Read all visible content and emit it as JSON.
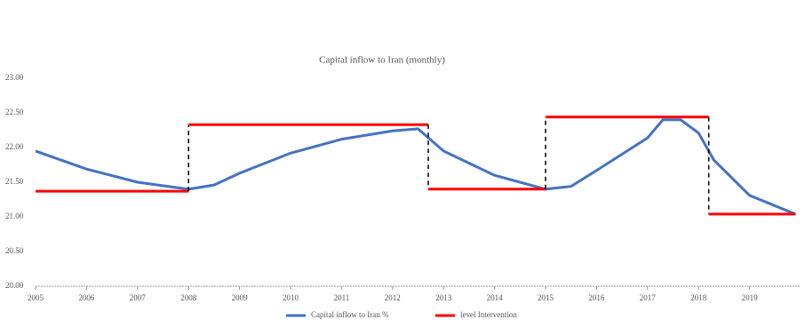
{
  "chart_data": {
    "type": "line",
    "title": "Capital inflow to Iran (monthly)",
    "xlim": [
      2005,
      2020
    ],
    "xticks": [
      2005,
      2006,
      2007,
      2008,
      2009,
      2010,
      2011,
      2012,
      2013,
      2014,
      2015,
      2016,
      2017,
      2018,
      2019
    ],
    "ylim": [
      20,
      23
    ],
    "yticks": [
      {
        "value": 20,
        "label": "20.00"
      },
      {
        "value": 20.5,
        "label": "20.50"
      },
      {
        "value": 21,
        "label": "21.00"
      },
      {
        "value": 21.5,
        "label": "21.50"
      },
      {
        "value": 22,
        "label": "22.00"
      },
      {
        "value": 22.5,
        "label": "22.50"
      },
      {
        "value": 23,
        "label": "23.00"
      }
    ],
    "series": [
      {
        "name": "Capital inflow to Iran %",
        "color": "#4472c4",
        "x": [
          2005,
          2006,
          2007,
          2008,
          2008.5,
          2009,
          2010,
          2011,
          2012,
          2012.5,
          2013,
          2014,
          2015,
          2015.5,
          2016,
          2017,
          2017.3,
          2017.65,
          2018,
          2018.3,
          2019,
          2019.9
        ],
        "values": [
          21.95,
          21.69,
          21.5,
          21.4,
          21.46,
          21.63,
          21.92,
          22.12,
          22.24,
          22.27,
          21.95,
          21.6,
          21.4,
          21.44,
          21.67,
          22.14,
          22.4,
          22.4,
          22.21,
          21.82,
          21.31,
          21.04
        ]
      },
      {
        "name": "level Intervention",
        "color": "#ff0000",
        "x": [
          2005,
          2008,
          2008,
          2012.7,
          2012.7,
          2015,
          2015,
          2018.2,
          2018.2,
          2019.9
        ],
        "values": [
          21.37,
          21.37,
          22.33,
          22.33,
          21.4,
          21.4,
          22.44,
          22.44,
          21.04,
          21.04
        ]
      }
    ]
  }
}
